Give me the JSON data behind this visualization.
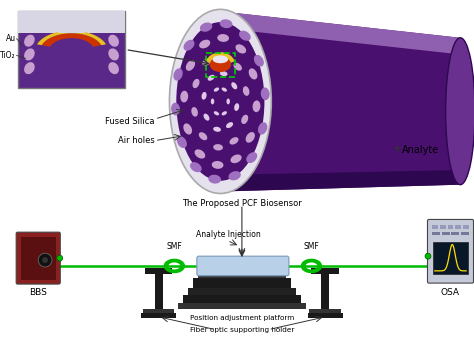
{
  "colors": {
    "fiber_purple": "#4a1070",
    "fiber_dark": "#2d0850",
    "fiber_mid": "#6a3090",
    "fiber_light": "#9060b0",
    "fiber_white": "#e8e5f0",
    "gold": "#e8c020",
    "red_layer": "#cc3300",
    "green_dashed": "#00cc00",
    "air_hole_pink": "#c8a0d0",
    "air_hole_light": "#e0c8e8",
    "fused_silica_center": "#a070c0",
    "BBS_dark": "#5a1010",
    "BBS_mid": "#8a2020",
    "OSA_body": "#c8ccd8",
    "OSA_screen": "#081828",
    "fiber_line": "#00bb00",
    "platform_dark": "#1a1a1a",
    "sensor_blue": "#b8d0e8",
    "arrow_color": "#222222",
    "inset_bg": "#5a2888",
    "inset_white": "#d8d5e5",
    "white_ring": "#e5e2ee"
  },
  "labels": {
    "Au": "Au",
    "TiO2": "TiO₂",
    "Fused_Silica": "Fused Silica",
    "Air_holes": "Air holes",
    "Analyte": "Analyte",
    "BBS": "BBS",
    "OSA": "OSA",
    "SMF_left": "SMF",
    "SMF_right": "SMF",
    "PCF_biosensor": "The Proposed PCF Biosensor",
    "Analyte_Injection": "Analyte Injection",
    "Position_platform": "Position adjustment platform",
    "Fiber_holder": "Fiber optic supporting holder"
  }
}
